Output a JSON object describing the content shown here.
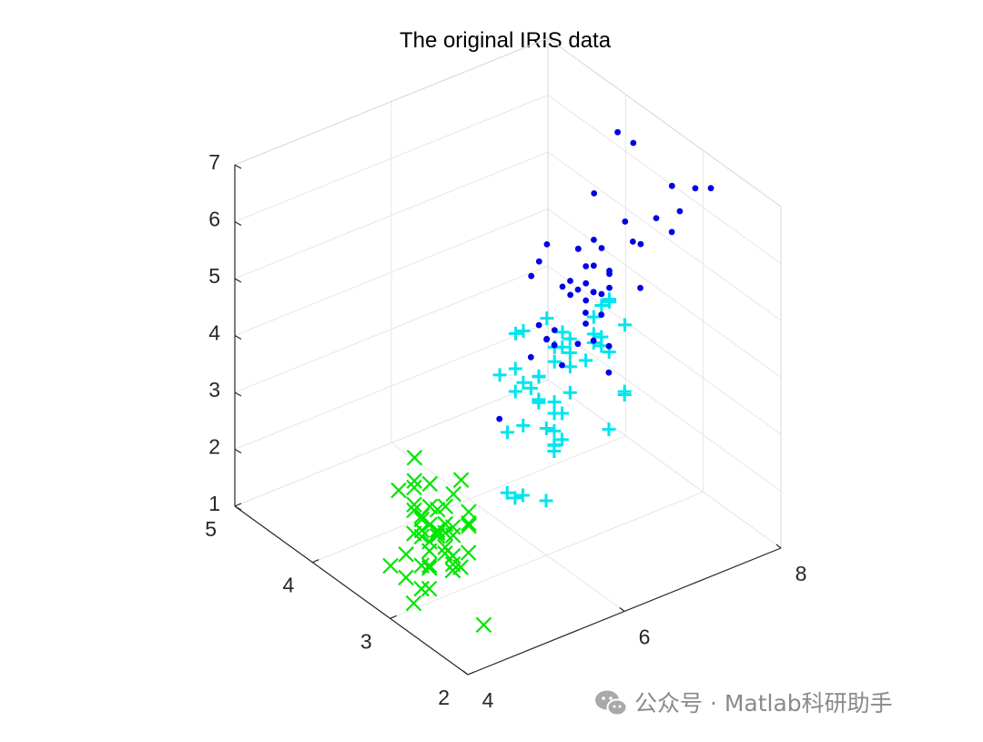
{
  "chart_data": {
    "type": "scatter",
    "title": "The original IRIS data",
    "projection": "3d",
    "axes": {
      "x": {
        "label": "",
        "range": [
          4,
          8
        ],
        "ticks": [
          "4",
          "6",
          "8"
        ],
        "tick_values": [
          4,
          6,
          8
        ]
      },
      "y": {
        "label": "",
        "range": [
          2,
          5
        ],
        "ticks": [
          "2",
          "3",
          "4",
          "5"
        ],
        "tick_values": [
          2,
          3,
          4,
          5
        ]
      },
      "z": {
        "label": "",
        "range": [
          1,
          7
        ],
        "ticks": [
          "1",
          "2",
          "3",
          "4",
          "5",
          "6",
          "7"
        ],
        "tick_values": [
          1,
          2,
          3,
          4,
          5,
          6,
          7
        ]
      }
    },
    "grid": true,
    "legend": "none",
    "series": [
      {
        "marker": "x",
        "color": "#00e600",
        "points": [
          [
            5.1,
            3.5,
            1.4
          ],
          [
            4.9,
            3.0,
            1.4
          ],
          [
            4.7,
            3.2,
            1.3
          ],
          [
            4.6,
            3.1,
            1.5
          ],
          [
            5.0,
            3.6,
            1.4
          ],
          [
            5.4,
            3.9,
            1.7
          ],
          [
            4.6,
            3.4,
            1.4
          ],
          [
            5.0,
            3.4,
            1.5
          ],
          [
            4.4,
            2.9,
            1.4
          ],
          [
            4.9,
            3.1,
            1.5
          ],
          [
            5.4,
            3.7,
            1.5
          ],
          [
            4.8,
            3.4,
            1.6
          ],
          [
            4.8,
            3.0,
            1.4
          ],
          [
            4.3,
            3.0,
            1.1
          ],
          [
            5.8,
            4.0,
            1.2
          ],
          [
            5.7,
            4.4,
            1.5
          ],
          [
            5.4,
            3.9,
            1.3
          ],
          [
            5.1,
            3.5,
            1.4
          ],
          [
            5.7,
            3.8,
            1.7
          ],
          [
            5.1,
            3.8,
            1.5
          ],
          [
            5.4,
            3.4,
            1.7
          ],
          [
            5.1,
            3.7,
            1.5
          ],
          [
            4.6,
            3.6,
            1.0
          ],
          [
            5.1,
            3.3,
            1.7
          ],
          [
            4.8,
            3.4,
            1.9
          ],
          [
            5.0,
            3.0,
            1.6
          ],
          [
            5.0,
            3.4,
            1.6
          ],
          [
            5.2,
            3.5,
            1.5
          ],
          [
            5.2,
            3.4,
            1.4
          ],
          [
            4.7,
            3.2,
            1.6
          ],
          [
            4.8,
            3.1,
            1.6
          ],
          [
            5.4,
            3.4,
            1.5
          ],
          [
            5.2,
            4.1,
            1.5
          ],
          [
            5.5,
            4.2,
            1.4
          ],
          [
            4.9,
            3.1,
            1.5
          ],
          [
            5.0,
            3.2,
            1.2
          ],
          [
            5.5,
            3.5,
            1.3
          ],
          [
            4.9,
            3.6,
            1.4
          ],
          [
            4.4,
            3.0,
            1.3
          ],
          [
            5.1,
            3.4,
            1.5
          ],
          [
            5.0,
            3.5,
            1.3
          ],
          [
            4.5,
            2.3,
            1.3
          ],
          [
            4.4,
            3.2,
            1.3
          ],
          [
            5.0,
            3.5,
            1.6
          ],
          [
            5.1,
            3.8,
            1.9
          ],
          [
            4.8,
            3.0,
            1.4
          ],
          [
            5.1,
            3.8,
            1.6
          ],
          [
            4.6,
            3.2,
            1.4
          ],
          [
            5.3,
            3.7,
            1.5
          ],
          [
            5.0,
            3.3,
            1.4
          ]
        ]
      },
      {
        "marker": "+",
        "color": "#00e5ee",
        "points": [
          [
            7.0,
            3.2,
            4.7
          ],
          [
            6.4,
            3.2,
            4.5
          ],
          [
            6.9,
            3.1,
            4.9
          ],
          [
            5.5,
            2.3,
            4.0
          ],
          [
            6.5,
            2.8,
            4.6
          ],
          [
            5.7,
            2.8,
            4.5
          ],
          [
            6.3,
            3.3,
            4.7
          ],
          [
            4.9,
            2.4,
            3.3
          ],
          [
            6.6,
            2.9,
            4.6
          ],
          [
            5.2,
            2.7,
            3.9
          ],
          [
            5.0,
            2.0,
            3.5
          ],
          [
            5.9,
            3.0,
            4.2
          ],
          [
            6.0,
            2.2,
            4.0
          ],
          [
            6.1,
            2.9,
            4.7
          ],
          [
            5.6,
            2.9,
            3.6
          ],
          [
            6.7,
            3.1,
            4.4
          ],
          [
            5.6,
            3.0,
            4.5
          ],
          [
            5.8,
            2.7,
            4.1
          ],
          [
            6.2,
            2.2,
            4.5
          ],
          [
            5.6,
            2.5,
            3.9
          ],
          [
            5.9,
            3.2,
            4.8
          ],
          [
            6.1,
            2.8,
            4.0
          ],
          [
            6.3,
            2.5,
            4.9
          ],
          [
            6.1,
            2.8,
            4.7
          ],
          [
            6.4,
            2.9,
            4.3
          ],
          [
            6.6,
            3.0,
            4.4
          ],
          [
            6.8,
            2.8,
            4.8
          ],
          [
            6.7,
            3.0,
            5.0
          ],
          [
            6.0,
            2.9,
            4.5
          ],
          [
            5.7,
            2.6,
            3.5
          ],
          [
            5.5,
            2.4,
            3.8
          ],
          [
            5.5,
            2.4,
            3.7
          ],
          [
            5.8,
            2.7,
            3.9
          ],
          [
            6.0,
            2.7,
            5.1
          ],
          [
            5.4,
            3.0,
            4.5
          ],
          [
            6.0,
            3.4,
            4.5
          ],
          [
            6.7,
            3.1,
            4.7
          ],
          [
            6.3,
            2.3,
            4.4
          ],
          [
            5.6,
            3.0,
            4.1
          ],
          [
            5.5,
            2.5,
            4.0
          ],
          [
            5.5,
            2.6,
            4.4
          ],
          [
            6.1,
            3.0,
            4.6
          ],
          [
            5.8,
            2.6,
            4.0
          ],
          [
            5.0,
            2.3,
            3.3
          ],
          [
            5.6,
            2.7,
            4.2
          ],
          [
            5.7,
            3.0,
            4.2
          ],
          [
            5.7,
            2.9,
            4.2
          ],
          [
            6.2,
            2.9,
            4.3
          ],
          [
            5.1,
            2.5,
            3.0
          ],
          [
            5.7,
            2.8,
            4.1
          ]
        ]
      },
      {
        "marker": ".",
        "color": "#0000e6",
        "points": [
          [
            6.3,
            3.3,
            6.0
          ],
          [
            5.8,
            2.7,
            5.1
          ],
          [
            7.1,
            3.0,
            5.9
          ],
          [
            6.3,
            2.9,
            5.6
          ],
          [
            6.5,
            3.0,
            5.8
          ],
          [
            7.6,
            3.0,
            6.6
          ],
          [
            4.9,
            2.5,
            4.5
          ],
          [
            7.3,
            2.9,
            6.3
          ],
          [
            6.7,
            2.5,
            5.8
          ],
          [
            7.2,
            3.6,
            6.1
          ],
          [
            6.5,
            3.2,
            5.1
          ],
          [
            6.4,
            2.7,
            5.3
          ],
          [
            6.8,
            3.0,
            5.5
          ],
          [
            5.7,
            2.5,
            5.0
          ],
          [
            5.8,
            2.8,
            5.1
          ],
          [
            6.4,
            3.2,
            5.3
          ],
          [
            6.5,
            3.0,
            5.5
          ],
          [
            7.7,
            3.8,
            6.7
          ],
          [
            7.7,
            2.6,
            6.9
          ],
          [
            6.0,
            2.2,
            5.0
          ],
          [
            6.9,
            3.2,
            5.7
          ],
          [
            5.6,
            2.8,
            4.9
          ],
          [
            7.7,
            2.8,
            6.7
          ],
          [
            6.3,
            2.7,
            4.9
          ],
          [
            6.7,
            3.3,
            5.7
          ],
          [
            7.2,
            3.2,
            6.0
          ],
          [
            6.2,
            2.8,
            4.8
          ],
          [
            6.1,
            3.0,
            4.9
          ],
          [
            6.4,
            2.8,
            5.6
          ],
          [
            7.2,
            3.0,
            5.8
          ],
          [
            7.4,
            2.8,
            6.1
          ],
          [
            7.9,
            3.8,
            6.4
          ],
          [
            6.4,
            2.8,
            5.6
          ],
          [
            6.3,
            2.8,
            5.1
          ],
          [
            6.1,
            2.6,
            5.6
          ],
          [
            7.7,
            3.0,
            6.1
          ],
          [
            6.3,
            3.4,
            5.6
          ],
          [
            6.4,
            3.1,
            5.5
          ],
          [
            6.0,
            3.0,
            4.8
          ],
          [
            6.9,
            3.1,
            5.4
          ],
          [
            6.7,
            3.1,
            5.6
          ],
          [
            6.9,
            3.1,
            5.1
          ],
          [
            5.8,
            2.7,
            5.1
          ],
          [
            6.8,
            3.2,
            5.9
          ],
          [
            6.7,
            3.3,
            5.7
          ],
          [
            6.7,
            3.0,
            5.2
          ],
          [
            6.3,
            2.5,
            5.0
          ],
          [
            6.5,
            3.0,
            5.2
          ],
          [
            6.2,
            3.4,
            5.4
          ],
          [
            5.9,
            3.0,
            5.1
          ]
        ]
      }
    ]
  },
  "watermark": {
    "text": "公众号 · Matlab科研助手",
    "icon": "wechat-icon"
  }
}
